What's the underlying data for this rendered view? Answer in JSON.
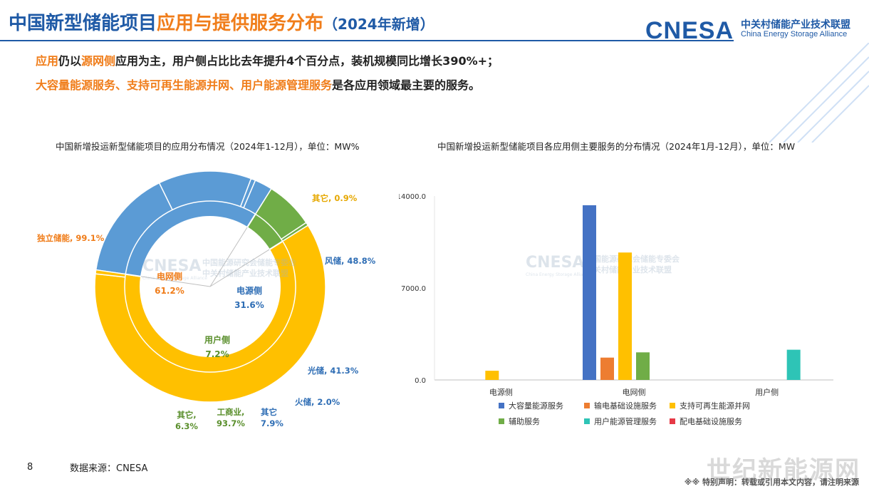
{
  "header": {
    "title_part1": "中国新型储能项目",
    "title_part2": "应用与提供服务分布",
    "title_part3": "（2024年新增）",
    "logo_mark": "CNESA",
    "logo_cn": "中关村储能产业技术联盟",
    "logo_en": "China Energy Storage Alliance"
  },
  "summary": {
    "l1_a": "应用",
    "l1_b": "仍以",
    "l1_c": "源网侧",
    "l1_d": "应用为主，用户侧占比比去年提升4个百分点，装机规模同比增长390%+；",
    "l2_a": "大容量能源服务、支持可再生能源并网、用户能源管理服务",
    "l2_b": "是各应用领域最主要的服务。"
  },
  "watermark": {
    "mark": "CNESA",
    "cn1": "中国能源研究会储能专委会",
    "cn2": "中关村储能产业技术联盟",
    "en": "China Energy Storage Alliance"
  },
  "chart_data": [
    {
      "type": "pie",
      "title": "中国新增投运新型储能项目的应用分布情况（2024年1-12月），单位：MW%",
      "inner": [
        {
          "name": "电网侧",
          "value": 61.2,
          "label": "电网侧",
          "pct_label": "61.2%",
          "color": "#ffc000"
        },
        {
          "name": "电源侧",
          "value": 31.6,
          "label": "电源侧",
          "pct_label": "31.6%",
          "color": "#5b9bd5"
        },
        {
          "name": "用户侧",
          "value": 7.2,
          "label": "用户侧",
          "pct_label": "7.2%",
          "color": "#70ad47"
        }
      ],
      "outer": [
        {
          "parent": "电网侧",
          "name": "其它",
          "value": 0.9,
          "label": "其它, 0.9%",
          "color": "#ffc000"
        },
        {
          "parent": "电源侧",
          "name": "风储",
          "value": 48.8,
          "label": "风储, 48.8%",
          "color": "#5b9bd5"
        },
        {
          "parent": "电源侧",
          "name": "光储",
          "value": 41.3,
          "label": "光储, 41.3%",
          "color": "#5b9bd5"
        },
        {
          "parent": "电源侧",
          "name": "火储",
          "value": 2.0,
          "label": "火储, 2.0%",
          "color": "#5b9bd5"
        },
        {
          "parent": "电源侧",
          "name": "其它",
          "value": 7.9,
          "label": "其它\n7.9%",
          "color": "#5b9bd5"
        },
        {
          "parent": "用户侧",
          "name": "工商业",
          "value": 93.7,
          "label": "工商业,\n93.7%",
          "color": "#70ad47"
        },
        {
          "parent": "用户侧",
          "name": "其它",
          "value": 6.3,
          "label": "其它,\n6.3%",
          "color": "#70ad47"
        },
        {
          "parent": "电网侧",
          "name": "独立储能",
          "value": 99.1,
          "label": "独立储能, 99.1%",
          "color": "#ffc000"
        }
      ]
    },
    {
      "type": "bar",
      "title": "中国新增投运新型储能项目各应用侧主要服务的分布情况（2024年1月-12月），单位：MW",
      "categories": [
        "电源侧",
        "电网侧",
        "用户侧"
      ],
      "ylim": [
        0,
        14000
      ],
      "yticks": [
        "0.0",
        "7000.0",
        "14000.0"
      ],
      "series": [
        {
          "name": "大容量能源服务",
          "color": "#4472c4",
          "values": [
            0,
            13300,
            0
          ]
        },
        {
          "name": "输电基础设施服务",
          "color": "#ed7d31",
          "values": [
            0,
            1700,
            0
          ]
        },
        {
          "name": "支持可再生能源并网",
          "color": "#ffc000",
          "values": [
            700,
            9700,
            0
          ]
        },
        {
          "name": "辅助服务",
          "color": "#70ad47",
          "values": [
            0,
            2100,
            0
          ]
        },
        {
          "name": "用户能源管理服务",
          "color": "#2ec4b6",
          "values": [
            0,
            0,
            2300
          ]
        },
        {
          "name": "配电基础设施服务",
          "color": "#e63946",
          "values": [
            0,
            0,
            0
          ]
        }
      ]
    }
  ],
  "footer": {
    "page": "8",
    "source": "数据来源：CNESA",
    "note": "※※ 特别声明：转载或引用本文内容，请注明来源",
    "corner_mark": "世纪新能源网"
  }
}
